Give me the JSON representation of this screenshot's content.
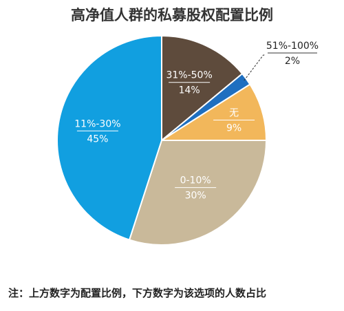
{
  "chart_data": {
    "type": "pie",
    "title": "高净值人群的私募股权配置比例",
    "slices": [
      {
        "label": "31%-50%",
        "value": 14,
        "value_label": "14%",
        "color": "#5e4b3c"
      },
      {
        "label": "51%-100%",
        "value": 2,
        "value_label": "2%",
        "color": "#1e6fc0"
      },
      {
        "label": "无",
        "value": 9,
        "value_label": "9%",
        "color": "#f2b75b"
      },
      {
        "label": "0-10%",
        "value": 30,
        "value_label": "30%",
        "color": "#c9b99a"
      },
      {
        "label": "11%-30%",
        "value": 45,
        "value_label": "45%",
        "color": "#119fe0"
      }
    ],
    "start_angle_deg": 0,
    "direction": "clockwise"
  },
  "footnote": "注：上方数字为配置比例，下方数字为该选项的人数占比"
}
